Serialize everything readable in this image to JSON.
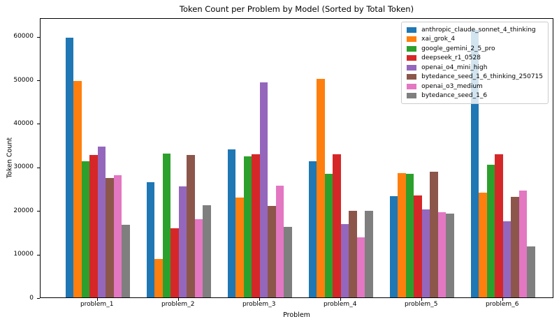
{
  "chart_data": {
    "type": "bar",
    "title": "Token Count per Problem by Model (Sorted by Total Token)",
    "xlabel": "Problem",
    "ylabel": "Token Count",
    "categories": [
      "problem_1",
      "problem_2",
      "problem_3",
      "problem_4",
      "problem_5",
      "problem_6"
    ],
    "series": [
      {
        "name": "anthropic_claude_sonnet_4_thinking",
        "color": "#1f77b4",
        "values": [
          59600,
          26400,
          34000,
          31300,
          23200,
          61400
        ]
      },
      {
        "name": "xai_grok_4",
        "color": "#ff7f0e",
        "values": [
          49700,
          8800,
          22900,
          50100,
          28500,
          24100
        ]
      },
      {
        "name": "google_gemini_2_5_pro",
        "color": "#2ca02c",
        "values": [
          31200,
          33100,
          32400,
          28300,
          28300,
          30500
        ]
      },
      {
        "name": "deepseek_r1_0528",
        "color": "#d62728",
        "values": [
          32700,
          15900,
          32800,
          32900,
          23400,
          32900
        ]
      },
      {
        "name": "openai_o4_mini_high",
        "color": "#9467bd",
        "values": [
          34700,
          25500,
          49400,
          16800,
          20200,
          17500
        ]
      },
      {
        "name": "bytedance_seed_1_6_thinking_250715",
        "color": "#8c564b",
        "values": [
          27400,
          32700,
          21000,
          19800,
          28900,
          23100
        ]
      },
      {
        "name": "openai_o3_medium",
        "color": "#e377c2",
        "values": [
          28000,
          18000,
          25600,
          13800,
          19600,
          24500
        ]
      },
      {
        "name": "bytedance_seed_1_6",
        "color": "#7f7f7f",
        "values": [
          16700,
          21100,
          16200,
          19900,
          19200,
          11700
        ]
      }
    ],
    "yticks": [
      0,
      10000,
      20000,
      30000,
      40000,
      50000,
      60000
    ],
    "ylim": [
      0,
      64300
    ],
    "grid": false,
    "legend_position": "upper right",
    "background_color": "#ffffff",
    "spine_color": "#000000"
  }
}
